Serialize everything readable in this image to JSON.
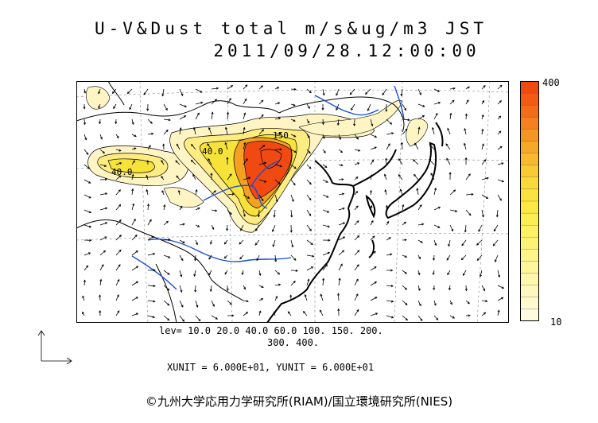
{
  "title": "U-V&Dust total m/s&ug/m3 JST",
  "datetime": "2011/09/28.12:00:00",
  "colorbar": {
    "max_label": "400",
    "min_label": "10"
  },
  "levels_line1": "lev= 10.0 20.0 40.0 60.0 100. 150. 200.",
  "levels_line2": "300. 400.",
  "units_line": "XUNIT = 6.000E+01, YUNIT = 6.000E+01",
  "contour_labels": {
    "a": "40.0",
    "b": "40.0",
    "c": "150"
  },
  "credit": "©九州大学応用力学研究所(RIAM)/国立環境研究所(NIES)",
  "colors": {
    "coast": "#000000",
    "river": "#1a4fd8",
    "low": "#fff7c8",
    "mid": "#f7e23a",
    "high": "#f04a12"
  }
}
